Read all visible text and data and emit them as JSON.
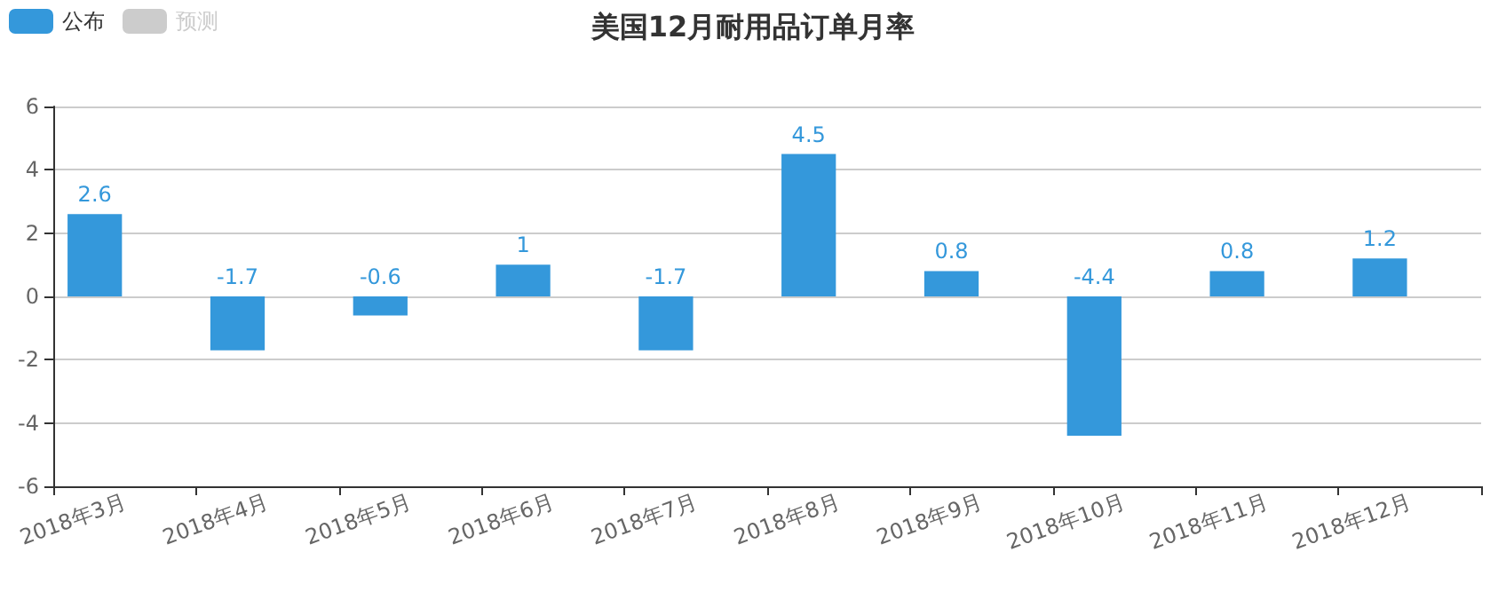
{
  "chart_data": {
    "type": "bar",
    "title": "美国12月耐用品订单月率",
    "categories": [
      "2018年3月",
      "2018年4月",
      "2018年5月",
      "2018年6月",
      "2018年7月",
      "2018年8月",
      "2018年9月",
      "2018年10月",
      "2018年11月",
      "2018年12月"
    ],
    "series": [
      {
        "name": "公布",
        "color": "#3498db",
        "values": [
          2.6,
          -1.7,
          -0.6,
          1,
          -1.7,
          4.5,
          0.8,
          -4.4,
          0.8,
          1.2
        ]
      },
      {
        "name": "预测",
        "color": "#cccccc",
        "values": [
          null,
          null,
          null,
          null,
          null,
          null,
          null,
          null,
          null,
          null
        ]
      }
    ],
    "ylim": [
      -6,
      6
    ],
    "yticks": [
      -6,
      -4,
      -2,
      0,
      2,
      4,
      6
    ],
    "grid": "y",
    "legend": "top left",
    "data_labels": true
  }
}
